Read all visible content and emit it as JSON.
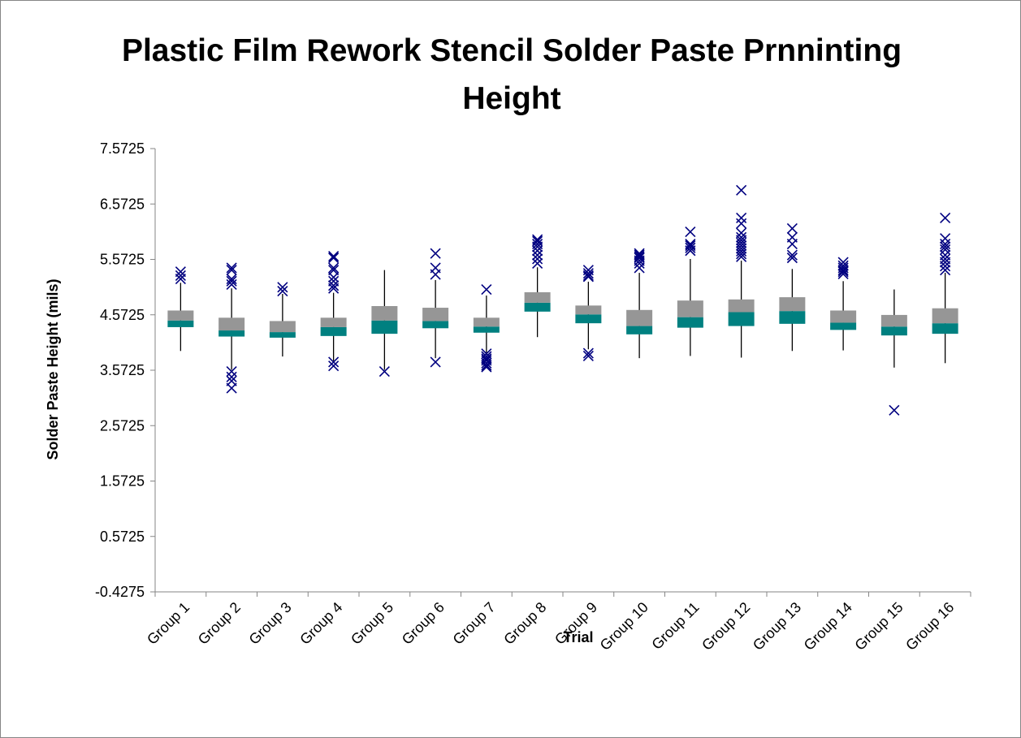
{
  "chart_data": {
    "type": "box",
    "title_lines": [
      "Plastic Film Rework Stencil Solder Paste Prnninting",
      "Height"
    ],
    "xlabel": "Trial",
    "ylabel": "Solder Paste Height (mils)",
    "ylim": [
      -0.4275,
      7.5725
    ],
    "yticks": [
      "7.5725",
      "6.5725",
      "5.5725",
      "4.5725",
      "3.5725",
      "2.5725",
      "1.5725",
      "0.5725",
      "-0.4275"
    ],
    "ytick_values": [
      7.5725,
      6.5725,
      5.5725,
      4.5725,
      3.5725,
      2.5725,
      1.5725,
      0.5725,
      -0.4275
    ],
    "categories": [
      "Group 1",
      "Group 2",
      "Group 3",
      "Group 4",
      "Group 5",
      "Group 6",
      "Group 7",
      "Group 8",
      "Group 9",
      "Group 10",
      "Group 11",
      "Group 12",
      "Group 13",
      "Group 14",
      "Group 15",
      "Group 16"
    ],
    "colors": {
      "upper_box": "#969696",
      "lower_box": "#008080",
      "outlier": "#000080",
      "whisker": "#000000"
    },
    "boxes": [
      {
        "whisker_min": 3.92,
        "q1": 4.35,
        "median": 4.47,
        "q3": 4.65,
        "whisker_max": 5.15,
        "outliers": [
          5.35,
          5.28,
          5.22
        ]
      },
      {
        "whisker_min": 3.58,
        "q1": 4.18,
        "median": 4.29,
        "q3": 4.52,
        "whisker_max": 5.05,
        "outliers": [
          5.42,
          5.38,
          5.22,
          5.18,
          5.12,
          3.55,
          3.45,
          3.38,
          3.25
        ]
      },
      {
        "whisker_min": 3.82,
        "q1": 4.16,
        "median": 4.26,
        "q3": 4.46,
        "whisker_max": 4.95,
        "outliers": [
          5.07,
          5.0
        ]
      },
      {
        "whisker_min": 3.74,
        "q1": 4.19,
        "median": 4.35,
        "q3": 4.52,
        "whisker_max": 4.97,
        "outliers": [
          5.63,
          5.6,
          5.42,
          5.38,
          5.25,
          5.18,
          5.1,
          5.05,
          3.72,
          3.65
        ]
      },
      {
        "whisker_min": 3.58,
        "q1": 4.23,
        "median": 4.47,
        "q3": 4.73,
        "whisker_max": 5.38,
        "outliers": [
          3.55
        ]
      },
      {
        "whisker_min": 3.79,
        "q1": 4.33,
        "median": 4.46,
        "q3": 4.7,
        "whisker_max": 5.2,
        "outliers": [
          5.68,
          5.42,
          5.3,
          3.72
        ]
      },
      {
        "whisker_min": 3.85,
        "q1": 4.25,
        "median": 4.36,
        "q3": 4.52,
        "whisker_max": 4.92,
        "outliers": [
          5.03,
          3.87,
          3.82,
          3.78,
          3.75,
          3.7,
          3.66,
          3.63
        ]
      },
      {
        "whisker_min": 4.17,
        "q1": 4.63,
        "median": 4.79,
        "q3": 4.98,
        "whisker_max": 5.43,
        "outliers": [
          5.93,
          5.9,
          5.85,
          5.8,
          5.73,
          5.65,
          5.58,
          5.5
        ]
      },
      {
        "whisker_min": 3.95,
        "q1": 4.42,
        "median": 4.58,
        "q3": 4.74,
        "whisker_max": 5.17,
        "outliers": [
          5.38,
          5.32,
          5.28,
          5.26,
          3.88,
          3.83
        ]
      },
      {
        "whisker_min": 3.79,
        "q1": 4.22,
        "median": 4.37,
        "q3": 4.66,
        "whisker_max": 5.33,
        "outliers": [
          5.68,
          5.65,
          5.62,
          5.6,
          5.55,
          5.5,
          5.42
        ]
      },
      {
        "whisker_min": 3.83,
        "q1": 4.34,
        "median": 4.53,
        "q3": 4.83,
        "whisker_max": 5.58,
        "outliers": [
          6.07,
          5.85,
          5.82,
          5.78,
          5.73
        ]
      },
      {
        "whisker_min": 3.8,
        "q1": 4.37,
        "median": 4.62,
        "q3": 4.85,
        "whisker_max": 5.55,
        "outliers": [
          6.82,
          6.32,
          6.22,
          6.05,
          5.97,
          5.92,
          5.87,
          5.82,
          5.77,
          5.72,
          5.67,
          5.62
        ]
      },
      {
        "whisker_min": 3.92,
        "q1": 4.41,
        "median": 4.64,
        "q3": 4.89,
        "whisker_max": 5.4,
        "outliers": [
          6.13,
          5.97,
          5.85,
          5.65,
          5.6
        ]
      },
      {
        "whisker_min": 3.93,
        "q1": 4.3,
        "median": 4.43,
        "q3": 4.65,
        "whisker_max": 5.18,
        "outliers": [
          5.52,
          5.46,
          5.42,
          5.38,
          5.35,
          5.31
        ]
      },
      {
        "whisker_min": 3.62,
        "q1": 4.2,
        "median": 4.36,
        "q3": 4.57,
        "whisker_max": 5.03,
        "outliers": [
          2.85
        ]
      },
      {
        "whisker_min": 3.7,
        "q1": 4.23,
        "median": 4.42,
        "q3": 4.69,
        "whisker_max": 5.33,
        "outliers": [
          6.32,
          5.95,
          5.85,
          5.8,
          5.75,
          5.65,
          5.58,
          5.52,
          5.45,
          5.38
        ]
      }
    ]
  }
}
